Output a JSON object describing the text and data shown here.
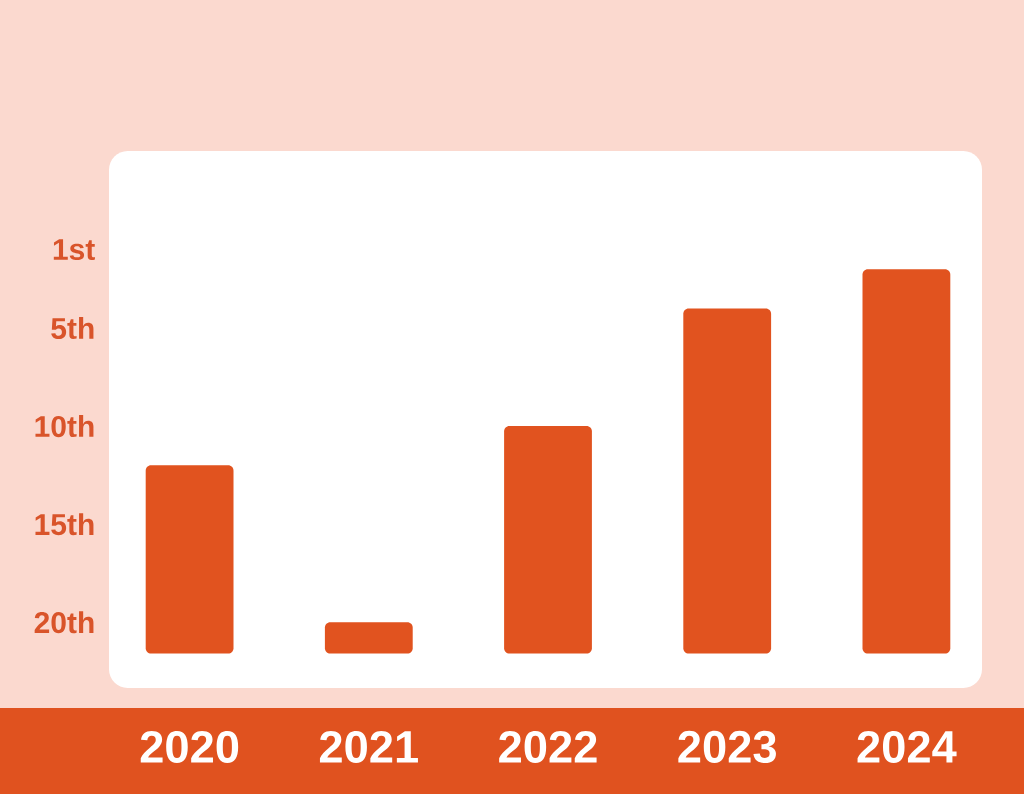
{
  "chart_data": {
    "type": "bar",
    "categories": [
      "2020",
      "2021",
      "2022",
      "2023",
      "2024"
    ],
    "base": [
      21.6,
      21.6,
      21.6,
      21.6,
      21.6
    ],
    "values": [
      -9.6,
      -1.6,
      -11.6,
      -17.6,
      -19.6
    ],
    "color": "#e1531f",
    "ylim": [
      21.6,
      0
    ],
    "yticks": [
      {
        "value": 1,
        "label": "1st"
      },
      {
        "value": 5,
        "label": "5th"
      },
      {
        "value": 10,
        "label": "10th"
      },
      {
        "value": 15,
        "label": "15th"
      },
      {
        "value": 20,
        "label": "20th"
      }
    ]
  }
}
